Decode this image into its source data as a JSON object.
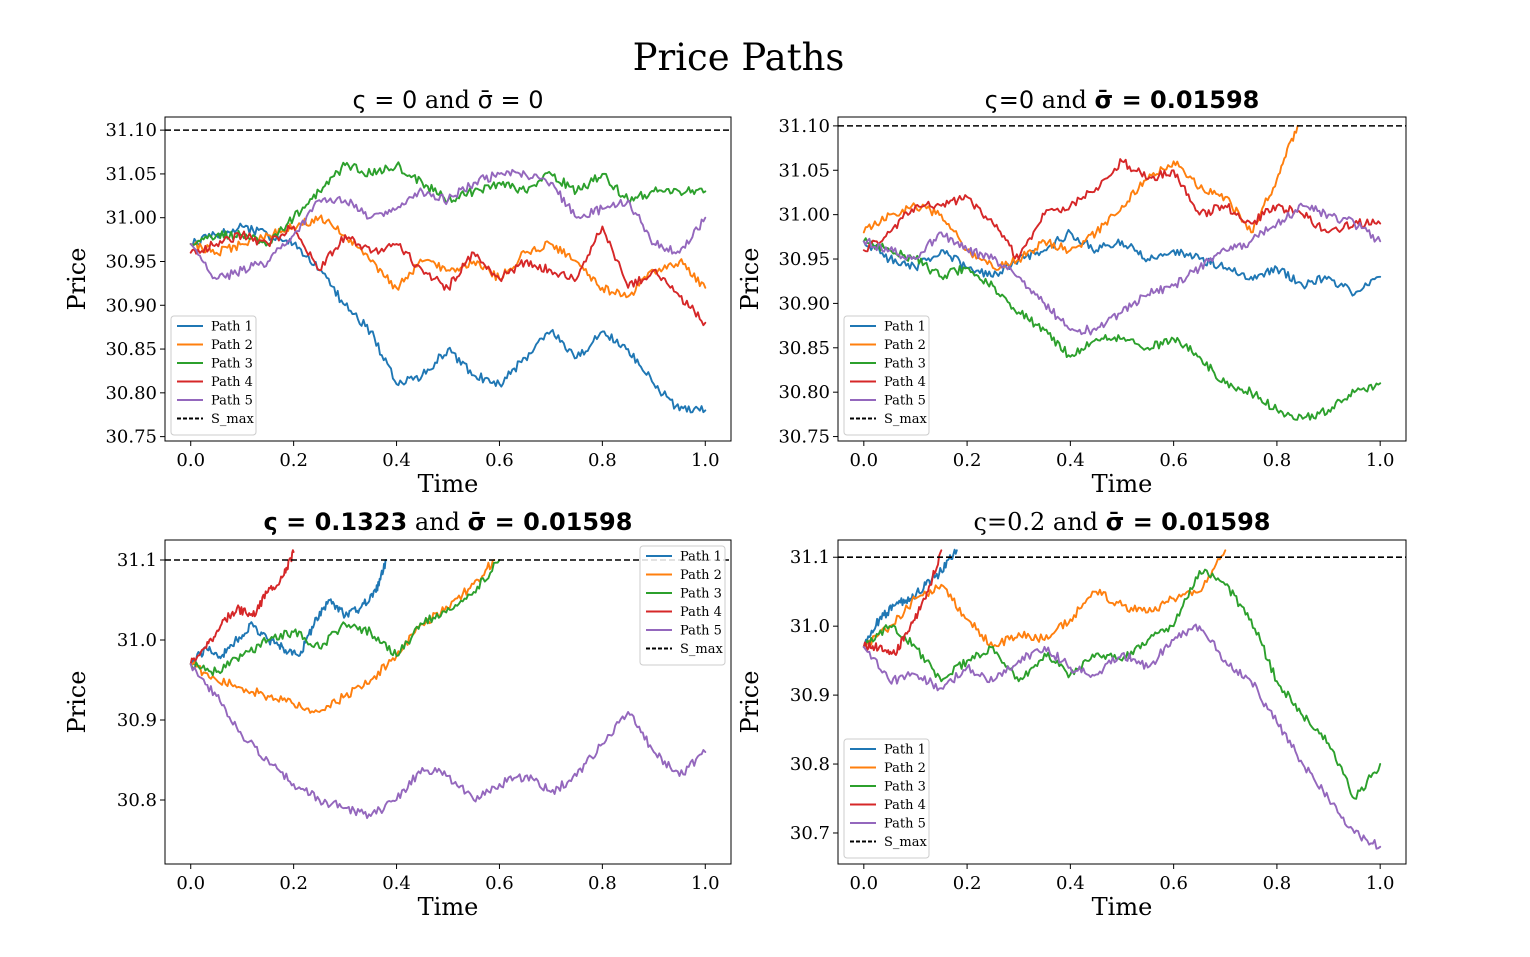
{
  "figure": {
    "title": "Price Paths"
  },
  "chart_data": [
    {
      "type": "line",
      "title_parts": [
        {
          "text": "ς = 0",
          "style": "sans"
        },
        {
          "text": " and ",
          "style": "serif"
        },
        {
          "text": "σ̄ = 0",
          "style": "sans"
        }
      ],
      "xlabel": "Time",
      "ylabel": "Price",
      "xlim": [
        -0.05,
        1.05
      ],
      "ylim": [
        30.745,
        31.115
      ],
      "xticks": [
        "0.0",
        "0.2",
        "0.4",
        "0.6",
        "0.8",
        "1.0"
      ],
      "yticks": [
        "30.75",
        "30.80",
        "30.85",
        "30.90",
        "30.95",
        "31.00",
        "31.05",
        "31.10"
      ],
      "grid": false,
      "legend_position": "lower-left",
      "s_max": 31.1,
      "series": [
        {
          "name": "Path 1",
          "color": "#1f77b4",
          "x": [
            0,
            0.05,
            0.1,
            0.15,
            0.2,
            0.25,
            0.3,
            0.35,
            0.4,
            0.45,
            0.5,
            0.55,
            0.6,
            0.65,
            0.7,
            0.75,
            0.8,
            0.85,
            0.9,
            0.95,
            1.0
          ],
          "y": [
            30.97,
            30.98,
            30.99,
            30.98,
            30.97,
            30.94,
            30.9,
            30.87,
            30.81,
            30.82,
            30.85,
            30.82,
            30.81,
            30.84,
            30.87,
            30.84,
            30.87,
            30.85,
            30.81,
            30.78,
            30.78
          ]
        },
        {
          "name": "Path 2",
          "color": "#ff7f0e",
          "x": [
            0,
            0.05,
            0.1,
            0.15,
            0.2,
            0.25,
            0.3,
            0.35,
            0.4,
            0.45,
            0.5,
            0.55,
            0.6,
            0.65,
            0.7,
            0.75,
            0.8,
            0.85,
            0.9,
            0.95,
            1.0
          ],
          "y": [
            30.97,
            30.96,
            30.97,
            30.98,
            30.99,
            31.0,
            30.98,
            30.95,
            30.92,
            30.95,
            30.94,
            30.95,
            30.93,
            30.96,
            30.97,
            30.95,
            30.92,
            30.91,
            30.94,
            30.95,
            30.92
          ]
        },
        {
          "name": "Path 3",
          "color": "#2ca02c",
          "x": [
            0,
            0.05,
            0.1,
            0.15,
            0.2,
            0.25,
            0.3,
            0.35,
            0.4,
            0.45,
            0.5,
            0.55,
            0.6,
            0.65,
            0.7,
            0.75,
            0.8,
            0.85,
            0.9,
            0.95,
            1.0
          ],
          "y": [
            30.97,
            30.98,
            30.98,
            30.97,
            31.0,
            31.03,
            31.06,
            31.05,
            31.06,
            31.04,
            31.02,
            31.03,
            31.04,
            31.03,
            31.05,
            31.03,
            31.05,
            31.02,
            31.03,
            31.03,
            31.03
          ]
        },
        {
          "name": "Path 4",
          "color": "#d62728",
          "x": [
            0,
            0.05,
            0.1,
            0.15,
            0.2,
            0.25,
            0.3,
            0.35,
            0.4,
            0.45,
            0.5,
            0.55,
            0.6,
            0.65,
            0.7,
            0.75,
            0.8,
            0.85,
            0.9,
            0.95,
            1.0
          ],
          "y": [
            30.96,
            30.97,
            30.98,
            30.97,
            30.99,
            30.94,
            30.98,
            30.96,
            30.97,
            30.94,
            30.92,
            30.96,
            30.93,
            30.95,
            30.94,
            30.93,
            30.99,
            30.92,
            30.94,
            30.91,
            30.88
          ]
        },
        {
          "name": "Path 5",
          "color": "#9467bd",
          "x": [
            0,
            0.05,
            0.1,
            0.15,
            0.2,
            0.25,
            0.3,
            0.35,
            0.4,
            0.45,
            0.5,
            0.55,
            0.6,
            0.65,
            0.7,
            0.75,
            0.8,
            0.85,
            0.9,
            0.95,
            1.0
          ],
          "y": [
            30.97,
            30.93,
            30.94,
            30.95,
            30.98,
            31.02,
            31.02,
            31.0,
            31.01,
            31.03,
            31.02,
            31.04,
            31.05,
            31.05,
            31.04,
            31.0,
            31.01,
            31.02,
            30.97,
            30.96,
            31.0
          ]
        }
      ]
    },
    {
      "type": "line",
      "title_parts": [
        {
          "text": "ς=0",
          "style": "sans"
        },
        {
          "text": " and ",
          "style": "serif"
        },
        {
          "text": "σ̄ = 0.01598",
          "style": "bold"
        }
      ],
      "xlabel": "Time",
      "ylabel": "Price",
      "xlim": [
        -0.05,
        1.05
      ],
      "ylim": [
        30.745,
        31.11
      ],
      "xticks": [
        "0.0",
        "0.2",
        "0.4",
        "0.6",
        "0.8",
        "1.0"
      ],
      "yticks": [
        "30.75",
        "30.80",
        "30.85",
        "30.90",
        "30.95",
        "31.00",
        "31.05",
        "31.10"
      ],
      "grid": false,
      "legend_position": "lower-left",
      "s_max": 31.1,
      "series": [
        {
          "name": "Path 1",
          "color": "#1f77b4",
          "x": [
            0,
            0.05,
            0.1,
            0.15,
            0.2,
            0.25,
            0.3,
            0.35,
            0.4,
            0.45,
            0.5,
            0.55,
            0.6,
            0.65,
            0.7,
            0.75,
            0.8,
            0.85,
            0.9,
            0.95,
            1.0
          ],
          "y": [
            30.97,
            30.95,
            30.94,
            30.96,
            30.94,
            30.93,
            30.95,
            30.96,
            30.98,
            30.96,
            30.97,
            30.95,
            30.96,
            30.95,
            30.94,
            30.93,
            30.94,
            30.92,
            30.93,
            30.91,
            30.93
          ]
        },
        {
          "name": "Path 2",
          "color": "#ff7f0e",
          "x": [
            0,
            0.05,
            0.1,
            0.15,
            0.2,
            0.25,
            0.3,
            0.35,
            0.4,
            0.45,
            0.5,
            0.55,
            0.6,
            0.65,
            0.7,
            0.75,
            0.8,
            0.84
          ],
          "y": [
            30.98,
            31.0,
            31.01,
            31.0,
            30.96,
            30.94,
            30.95,
            30.97,
            30.96,
            30.98,
            31.01,
            31.04,
            31.06,
            31.03,
            31.02,
            30.98,
            31.04,
            31.1
          ]
        },
        {
          "name": "Path 3",
          "color": "#2ca02c",
          "x": [
            0,
            0.05,
            0.1,
            0.15,
            0.2,
            0.25,
            0.3,
            0.35,
            0.4,
            0.45,
            0.5,
            0.55,
            0.6,
            0.65,
            0.7,
            0.75,
            0.8,
            0.85,
            0.9,
            0.95,
            1.0
          ],
          "y": [
            30.97,
            30.96,
            30.95,
            30.93,
            30.94,
            30.92,
            30.89,
            30.87,
            30.84,
            30.86,
            30.86,
            30.85,
            30.86,
            30.84,
            30.81,
            30.8,
            30.78,
            30.77,
            30.78,
            30.8,
            30.81
          ]
        },
        {
          "name": "Path 4",
          "color": "#d62728",
          "x": [
            0,
            0.05,
            0.1,
            0.15,
            0.2,
            0.25,
            0.3,
            0.35,
            0.4,
            0.45,
            0.5,
            0.55,
            0.6,
            0.65,
            0.7,
            0.75,
            0.8,
            0.85,
            0.9,
            0.95,
            1.0
          ],
          "y": [
            30.96,
            30.98,
            31.01,
            31.01,
            31.02,
            30.99,
            30.95,
            31.0,
            31.01,
            31.03,
            31.06,
            31.04,
            31.05,
            31.0,
            31.01,
            30.99,
            31.01,
            31.0,
            30.98,
            30.99,
            30.99
          ]
        },
        {
          "name": "Path 5",
          "color": "#9467bd",
          "x": [
            0,
            0.05,
            0.1,
            0.15,
            0.2,
            0.25,
            0.3,
            0.35,
            0.4,
            0.45,
            0.5,
            0.55,
            0.6,
            0.65,
            0.7,
            0.75,
            0.8,
            0.85,
            0.9,
            0.95,
            1.0
          ],
          "y": [
            30.97,
            30.96,
            30.95,
            30.98,
            30.96,
            30.95,
            30.93,
            30.9,
            30.87,
            30.87,
            30.89,
            30.91,
            30.92,
            30.94,
            30.96,
            30.97,
            30.99,
            31.01,
            31.0,
            30.99,
            30.97
          ]
        }
      ]
    },
    {
      "type": "line",
      "title_parts": [
        {
          "text": "ς = 0.1323",
          "style": "bold"
        },
        {
          "text": " and ",
          "style": "serif"
        },
        {
          "text": "σ̄ = 0.01598",
          "style": "bold"
        }
      ],
      "xlabel": "Time",
      "ylabel": "Price",
      "xlim": [
        -0.05,
        1.05
      ],
      "ylim": [
        30.72,
        31.125
      ],
      "xticks": [
        "0.0",
        "0.2",
        "0.4",
        "0.6",
        "0.8",
        "1.0"
      ],
      "yticks": [
        "30.8",
        "30.9",
        "31.0",
        "31.1"
      ],
      "grid": false,
      "legend_position": "upper-right",
      "s_max": 31.1,
      "series": [
        {
          "name": "Path 1",
          "color": "#1f77b4",
          "x": [
            0,
            0.03,
            0.06,
            0.09,
            0.12,
            0.15,
            0.18,
            0.21,
            0.24,
            0.27,
            0.3,
            0.33,
            0.36,
            0.38
          ],
          "y": [
            30.97,
            30.99,
            30.98,
            31.0,
            31.02,
            31.0,
            30.99,
            30.98,
            31.02,
            31.05,
            31.03,
            31.04,
            31.06,
            31.1
          ]
        },
        {
          "name": "Path 2",
          "color": "#ff7f0e",
          "x": [
            0,
            0.05,
            0.1,
            0.15,
            0.2,
            0.25,
            0.3,
            0.35,
            0.4,
            0.45,
            0.5,
            0.55,
            0.59
          ],
          "y": [
            30.97,
            30.95,
            30.94,
            30.93,
            30.92,
            30.91,
            30.93,
            30.95,
            30.98,
            31.02,
            31.04,
            31.07,
            31.1
          ]
        },
        {
          "name": "Path 3",
          "color": "#2ca02c",
          "x": [
            0,
            0.05,
            0.1,
            0.15,
            0.2,
            0.25,
            0.3,
            0.35,
            0.4,
            0.45,
            0.5,
            0.55,
            0.6
          ],
          "y": [
            30.97,
            30.96,
            30.98,
            31.0,
            31.01,
            30.99,
            31.02,
            31.01,
            30.98,
            31.02,
            31.04,
            31.06,
            31.1
          ]
        },
        {
          "name": "Path 4",
          "color": "#d62728",
          "x": [
            0,
            0.03,
            0.06,
            0.09,
            0.12,
            0.15,
            0.18,
            0.2
          ],
          "y": [
            30.97,
            30.99,
            31.02,
            31.04,
            31.03,
            31.06,
            31.08,
            31.11
          ]
        },
        {
          "name": "Path 5",
          "color": "#9467bd",
          "x": [
            0,
            0.05,
            0.1,
            0.15,
            0.2,
            0.25,
            0.3,
            0.35,
            0.4,
            0.45,
            0.5,
            0.55,
            0.6,
            0.65,
            0.7,
            0.75,
            0.8,
            0.85,
            0.9,
            0.95,
            1.0
          ],
          "y": [
            30.97,
            30.93,
            30.88,
            30.85,
            30.82,
            30.8,
            30.79,
            30.78,
            30.8,
            30.84,
            30.83,
            30.8,
            30.82,
            30.83,
            30.81,
            30.83,
            30.87,
            30.91,
            30.86,
            30.83,
            30.86
          ]
        }
      ]
    },
    {
      "type": "line",
      "title_parts": [
        {
          "text": "ς=0.2",
          "style": "serif"
        },
        {
          "text": " and ",
          "style": "serif"
        },
        {
          "text": "σ̄ = 0.01598",
          "style": "bold"
        }
      ],
      "xlabel": "Time",
      "ylabel": "Price",
      "xlim": [
        -0.05,
        1.05
      ],
      "ylim": [
        30.655,
        31.125
      ],
      "xticks": [
        "0.0",
        "0.2",
        "0.4",
        "0.6",
        "0.8",
        "1.0"
      ],
      "yticks": [
        "30.7",
        "30.8",
        "30.9",
        "31.0",
        "31.1"
      ],
      "grid": false,
      "legend_position": "lower-left",
      "s_max": 31.1,
      "series": [
        {
          "name": "Path 1",
          "color": "#1f77b4",
          "x": [
            0,
            0.03,
            0.06,
            0.09,
            0.12,
            0.15,
            0.18
          ],
          "y": [
            30.97,
            31.01,
            31.03,
            31.04,
            31.06,
            31.08,
            31.11
          ]
        },
        {
          "name": "Path 2",
          "color": "#ff7f0e",
          "x": [
            0,
            0.05,
            0.1,
            0.15,
            0.2,
            0.25,
            0.3,
            0.35,
            0.4,
            0.45,
            0.5,
            0.55,
            0.6,
            0.65,
            0.7
          ],
          "y": [
            30.97,
            31.0,
            31.04,
            31.06,
            31.01,
            30.97,
            30.99,
            30.98,
            31.01,
            31.05,
            31.03,
            31.02,
            31.04,
            31.05,
            31.11
          ]
        },
        {
          "name": "Path 3",
          "color": "#2ca02c",
          "x": [
            0,
            0.05,
            0.1,
            0.15,
            0.2,
            0.25,
            0.3,
            0.35,
            0.4,
            0.45,
            0.5,
            0.55,
            0.6,
            0.65,
            0.7,
            0.75,
            0.8,
            0.85,
            0.9,
            0.95,
            1.0
          ],
          "y": [
            30.97,
            31.0,
            30.97,
            30.92,
            30.95,
            30.97,
            30.92,
            30.96,
            30.93,
            30.96,
            30.95,
            30.98,
            31.0,
            31.08,
            31.06,
            31.01,
            30.92,
            30.87,
            30.83,
            30.75,
            30.8
          ]
        },
        {
          "name": "Path 4",
          "color": "#d62728",
          "x": [
            0,
            0.03,
            0.06,
            0.09,
            0.12,
            0.15
          ],
          "y": [
            30.97,
            30.97,
            30.96,
            31.0,
            31.04,
            31.11
          ]
        },
        {
          "name": "Path 5",
          "color": "#9467bd",
          "x": [
            0,
            0.05,
            0.1,
            0.15,
            0.2,
            0.25,
            0.3,
            0.35,
            0.4,
            0.45,
            0.5,
            0.55,
            0.6,
            0.65,
            0.7,
            0.75,
            0.8,
            0.85,
            0.9,
            0.95,
            1.0
          ],
          "y": [
            30.97,
            30.92,
            30.93,
            30.91,
            30.94,
            30.92,
            30.95,
            30.97,
            30.94,
            30.93,
            30.96,
            30.94,
            30.98,
            31.0,
            30.95,
            30.92,
            30.86,
            30.8,
            30.75,
            30.7,
            30.68
          ]
        }
      ]
    }
  ]
}
